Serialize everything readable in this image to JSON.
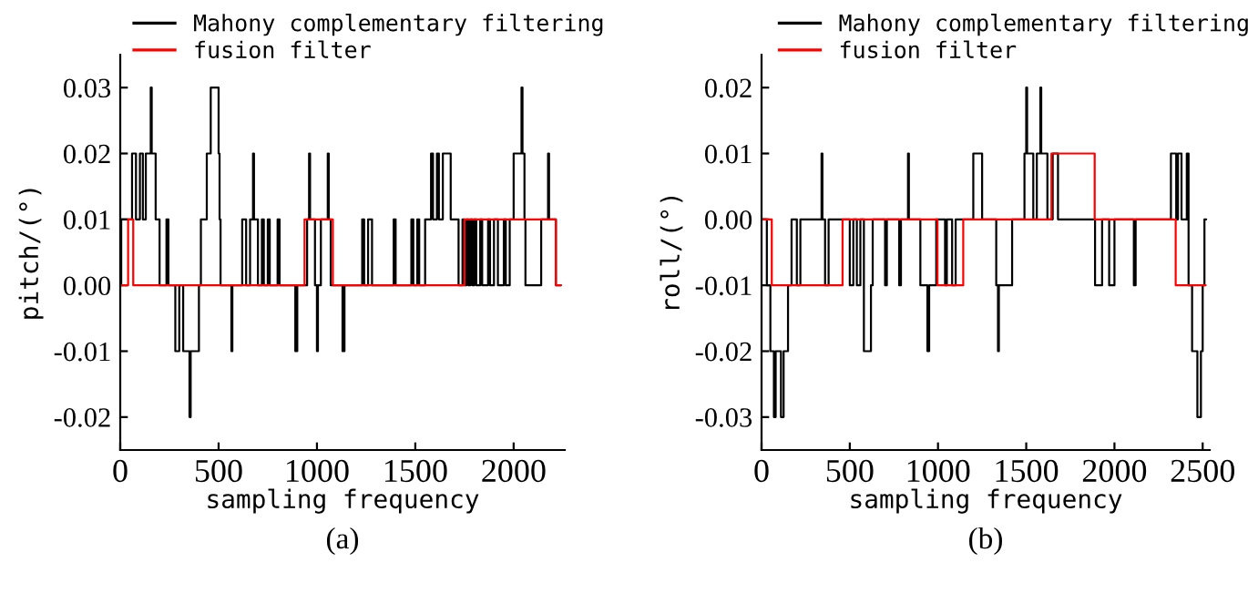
{
  "chart_data": [
    {
      "type": "step",
      "xlabel": "sampling frequency",
      "ylabel": "pitch/(°)",
      "legend": "top right",
      "grid": false,
      "annotations": [
        "(a)"
      ],
      "xlim": [
        0,
        2260
      ],
      "xticks": [
        0,
        500,
        1000,
        1500,
        2000
      ],
      "ylim": [
        -0.025,
        0.035
      ],
      "yticks": [
        {
          "value": -0.02,
          "label": "-0.02"
        },
        {
          "value": -0.01,
          "label": "-0.01"
        },
        {
          "value": 0,
          "label": "0.00"
        },
        {
          "value": 0.01,
          "label": "0.01"
        },
        {
          "value": 0.02,
          "label": "0.02"
        },
        {
          "value": 0.03,
          "label": "0.03"
        }
      ],
      "series": [
        {
          "name": "Mahony complementary filtering",
          "color": "#000000",
          "x": [
            0,
            5,
            60,
            80,
            100,
            115,
            130,
            155,
            160,
            180,
            200,
            235,
            245,
            280,
            300,
            320,
            352,
            358,
            400,
            410,
            440,
            460,
            500,
            505,
            510,
            565,
            570,
            620,
            640,
            660,
            675,
            680,
            700,
            720,
            730,
            750,
            760,
            800,
            810,
            890,
            900,
            950,
            960,
            965,
            990,
            1000,
            1005,
            1020,
            1055,
            1060,
            1070,
            1130,
            1140,
            1230,
            1240,
            1260,
            1280,
            1390,
            1400,
            1480,
            1490,
            1510,
            1520,
            1550,
            1580,
            1590,
            1610,
            1620,
            1640,
            1680,
            1720,
            1740,
            1750,
            1760,
            1770,
            1780,
            1790,
            1800,
            1810,
            1830,
            1840,
            1870,
            1880,
            1900,
            1920,
            1950,
            1960,
            1980,
            2000,
            2040,
            2045,
            2055,
            2060,
            2140,
            2175,
            2180,
            2215,
            2240
          ],
          "values": [
            0,
            0.01,
            0.02,
            0.01,
            0.02,
            0.01,
            0.02,
            0.03,
            0.02,
            0.01,
            0,
            0.01,
            0,
            -0.01,
            0,
            -0.01,
            -0.02,
            -0.01,
            0,
            0.01,
            0.02,
            0.03,
            0.02,
            0.01,
            0,
            -0.01,
            0,
            0.01,
            0,
            0.01,
            0.02,
            0.01,
            0,
            0.01,
            0,
            0.01,
            0,
            0.01,
            0,
            -0.01,
            0,
            0.01,
            0.02,
            0.01,
            0,
            -0.01,
            0,
            0.01,
            0.02,
            0.01,
            0,
            -0.01,
            0,
            0.01,
            0,
            0.01,
            0,
            0.01,
            0,
            0.01,
            0,
            0.01,
            0,
            0.01,
            0.02,
            0.01,
            0.02,
            0.01,
            0.02,
            0.01,
            0,
            0.01,
            0,
            0.01,
            0,
            0.01,
            0,
            0.01,
            0,
            0.01,
            0,
            0.01,
            0,
            0.01,
            0,
            0.01,
            0,
            0.01,
            0.02,
            0.03,
            0.02,
            0.01,
            0,
            0.01,
            0.02,
            0.01,
            0,
            0
          ]
        },
        {
          "name": "fusion filter",
          "color": "#ff0000",
          "x": [
            0,
            40,
            66,
            937,
            1081,
            1750,
            2214,
            2240
          ],
          "values": [
            0,
            0.01,
            0,
            0.01,
            0,
            0.01,
            0,
            0
          ]
        }
      ]
    },
    {
      "type": "step",
      "xlabel": "sampling frequency",
      "ylabel": "roll/(°)",
      "legend": "top right",
      "grid": false,
      "annotations": [
        "(b)"
      ],
      "xlim": [
        0,
        2540
      ],
      "xticks": [
        0,
        500,
        1000,
        1500,
        2000,
        2500
      ],
      "ylim": [
        -0.035,
        0.025
      ],
      "yticks": [
        {
          "value": -0.03,
          "label": "-0.03"
        },
        {
          "value": -0.02,
          "label": "-0.02"
        },
        {
          "value": -0.01,
          "label": "-0.01"
        },
        {
          "value": 0,
          "label": "0.00"
        },
        {
          "value": 0.01,
          "label": "0.01"
        },
        {
          "value": 0.02,
          "label": "0.02"
        }
      ],
      "series": [
        {
          "name": "Mahony complementary filtering",
          "color": "#000000",
          "x": [
            0,
            30,
            50,
            70,
            80,
            110,
            125,
            150,
            170,
            200,
            220,
            340,
            345,
            360,
            380,
            500,
            520,
            540,
            560,
            580,
            620,
            630,
            700,
            710,
            780,
            790,
            830,
            835,
            900,
            940,
            950,
            990,
            1040,
            1050,
            1080,
            1100,
            1200,
            1250,
            1330,
            1340,
            1345,
            1420,
            1490,
            1500,
            1505,
            1540,
            1560,
            1580,
            1585,
            1620,
            1650,
            1680,
            1890,
            1930,
            1970,
            2000,
            2110,
            2120,
            2320,
            2350,
            2360,
            2380,
            2410,
            2420,
            2440,
            2470,
            2490,
            2500,
            2510,
            2520
          ],
          "values": [
            0,
            -0.01,
            -0.02,
            -0.03,
            -0.02,
            -0.03,
            -0.02,
            -0.01,
            0,
            -0.01,
            0,
            0.01,
            0,
            -0.01,
            0,
            -0.01,
            0,
            -0.01,
            0,
            -0.02,
            -0.01,
            0,
            -0.01,
            0,
            -0.01,
            0,
            0.01,
            0,
            -0.01,
            -0.02,
            -0.01,
            0,
            -0.01,
            0,
            -0.01,
            0,
            0.01,
            0,
            -0.01,
            -0.02,
            -0.01,
            0,
            0.01,
            0.02,
            0.01,
            0,
            0.01,
            0.02,
            0.01,
            0,
            0.01,
            0,
            -0.01,
            0,
            -0.01,
            0,
            -0.01,
            0,
            0.01,
            0,
            0.01,
            0,
            0.01,
            -0.01,
            -0.02,
            -0.03,
            -0.02,
            -0.01,
            0,
            0
          ]
        },
        {
          "name": "fusion filter",
          "color": "#ff0000",
          "x": [
            0,
            58,
            459,
            997,
            1143,
            1643,
            1888,
            2347,
            2517
          ],
          "values": [
            0,
            -0.01,
            0,
            -0.01,
            0,
            0.01,
            0,
            -0.01,
            -0.01
          ]
        }
      ]
    }
  ]
}
